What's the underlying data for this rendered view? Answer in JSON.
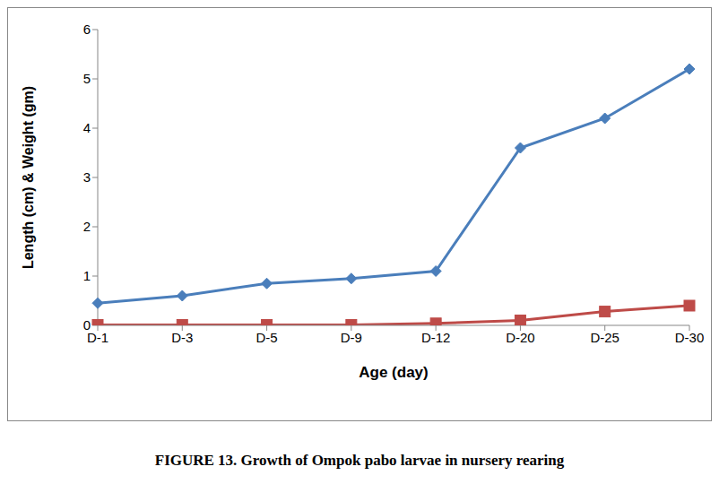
{
  "chart_data": {
    "type": "line",
    "title": "FIGURE 13. Growth of Ompok pabo larvae in nursery rearing",
    "x_label": "Age (day)",
    "y_label": "Length (cm) & Weight (gm)",
    "categories": [
      "D-1",
      "D-3",
      "D-5",
      "D-9",
      "D-12",
      "D-20",
      "D-25",
      "D-30"
    ],
    "series": [
      {
        "color": "#4a7ebb",
        "marker": "diamond",
        "values": [
          0.45,
          0.6,
          0.85,
          0.95,
          1.1,
          3.6,
          4.2,
          5.2
        ]
      },
      {
        "color": "#be4b48",
        "marker": "square",
        "values": [
          0.01,
          0.01,
          0.01,
          0.01,
          0.04,
          0.1,
          0.28,
          0.4
        ]
      }
    ],
    "ylim": [
      0,
      6
    ],
    "yticks": [
      0,
      1,
      2,
      3,
      4,
      5,
      6
    ],
    "grid": false
  }
}
